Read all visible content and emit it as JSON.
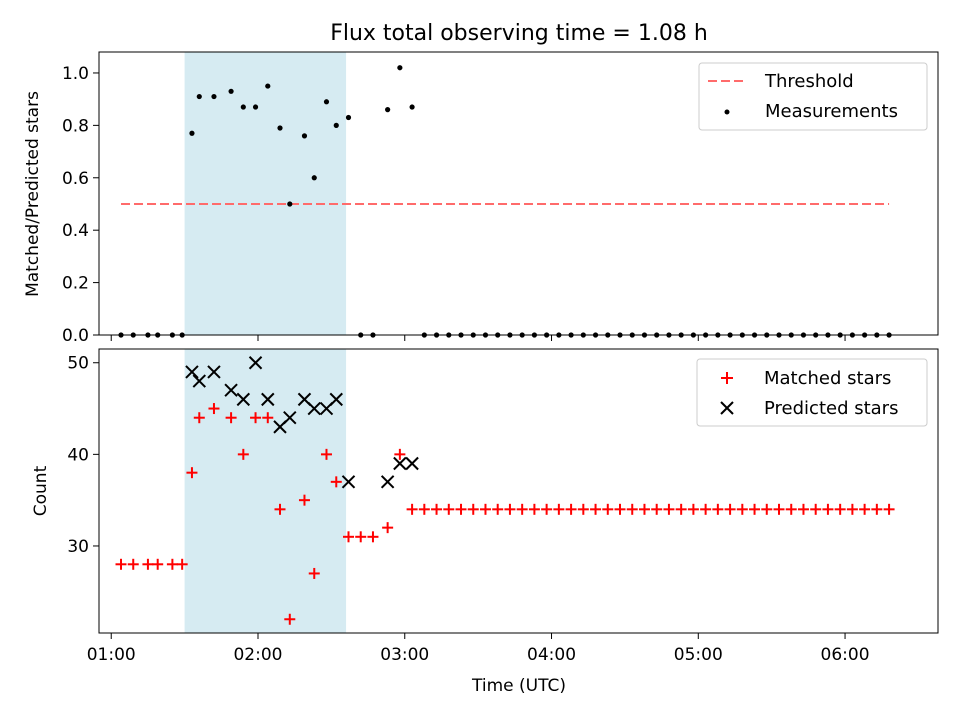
{
  "chart_data": [
    {
      "type": "scatter",
      "title": "Flux total observing time = 1.08 h",
      "ylabel": "Matched/Predicted stars",
      "xlabel": "",
      "xlim": [
        "00:55",
        "06:38"
      ],
      "ylim": [
        0,
        1.08
      ],
      "yticks": [
        "0.0",
        "0.2",
        "0.4",
        "0.6",
        "0.8",
        "1.0"
      ],
      "shaded_region": [
        "01:30",
        "02:36"
      ],
      "legend_position": "top-right",
      "threshold": {
        "name": "Threshold",
        "value": 0.5,
        "x_range": [
          "01:04",
          "06:18"
        ],
        "color": "#ff6b6b"
      },
      "measurements": {
        "name": "Measurements",
        "color": "#000000",
        "x": [
          "01:04",
          "01:09",
          "01:15",
          "01:19",
          "01:25",
          "01:29",
          "01:33",
          "01:36",
          "01:42",
          "01:49",
          "01:54",
          "01:59",
          "02:04",
          "02:09",
          "02:13",
          "02:19",
          "02:23",
          "02:28",
          "02:32",
          "02:37",
          "02:42",
          "02:47",
          "02:53",
          "02:58",
          "03:03",
          "03:08",
          "03:13",
          "03:18",
          "03:23",
          "03:28",
          "03:33",
          "03:38",
          "03:43",
          "03:48",
          "03:53",
          "03:58",
          "04:03",
          "04:08",
          "04:13",
          "04:18",
          "04:23",
          "04:28",
          "04:33",
          "04:38",
          "04:43",
          "04:48",
          "04:53",
          "04:58",
          "05:03",
          "05:08",
          "05:13",
          "05:18",
          "05:23",
          "05:28",
          "05:33",
          "05:38",
          "05:43",
          "05:48",
          "05:53",
          "05:58",
          "06:03",
          "06:08",
          "06:13",
          "06:18"
        ],
        "y": [
          0,
          0,
          0,
          0,
          0,
          0,
          0.77,
          0.91,
          0.91,
          0.93,
          0.87,
          0.87,
          0.95,
          0.79,
          0.5,
          0.76,
          0.6,
          0.89,
          0.8,
          0.83,
          0,
          0,
          0.86,
          1.02,
          0.87,
          0,
          0,
          0,
          0,
          0,
          0,
          0,
          0,
          0,
          0,
          0,
          0,
          0,
          0,
          0,
          0,
          0,
          0,
          0,
          0,
          0,
          0,
          0,
          0,
          0,
          0,
          0,
          0,
          0,
          0,
          0,
          0,
          0,
          0,
          0,
          0,
          0,
          0,
          0
        ]
      }
    },
    {
      "type": "scatter",
      "title": "",
      "ylabel": "Count",
      "xlabel": "Time (UTC)",
      "xlim": [
        "00:55",
        "06:38"
      ],
      "ylim": [
        20.5,
        51.5
      ],
      "yticks": [
        "30",
        "40",
        "50"
      ],
      "xticks": [
        "01:00",
        "02:00",
        "03:00",
        "04:00",
        "05:00",
        "06:00"
      ],
      "shaded_region": [
        "01:30",
        "02:36"
      ],
      "legend_position": "top-right",
      "series": [
        {
          "name": "Matched stars",
          "marker": "plus",
          "color": "#ff0000",
          "x": [
            "01:04",
            "01:09",
            "01:15",
            "01:19",
            "01:25",
            "01:29",
            "01:33",
            "01:36",
            "01:42",
            "01:49",
            "01:54",
            "01:59",
            "02:04",
            "02:09",
            "02:13",
            "02:19",
            "02:23",
            "02:28",
            "02:32",
            "02:37",
            "02:42",
            "02:47",
            "02:53",
            "02:58",
            "03:03",
            "03:08",
            "03:13",
            "03:18",
            "03:23",
            "03:28",
            "03:33",
            "03:38",
            "03:43",
            "03:48",
            "03:53",
            "03:58",
            "04:03",
            "04:08",
            "04:13",
            "04:18",
            "04:23",
            "04:28",
            "04:33",
            "04:38",
            "04:43",
            "04:48",
            "04:53",
            "04:58",
            "05:03",
            "05:08",
            "05:13",
            "05:18",
            "05:23",
            "05:28",
            "05:33",
            "05:38",
            "05:43",
            "05:48",
            "05:53",
            "05:58",
            "06:03",
            "06:08",
            "06:13",
            "06:18"
          ],
          "y": [
            28,
            28,
            28,
            28,
            28,
            28,
            38,
            44,
            45,
            44,
            40,
            44,
            44,
            34,
            22,
            35,
            27,
            40,
            37,
            31,
            31,
            31,
            32,
            40,
            34,
            34,
            34,
            34,
            34,
            34,
            34,
            34,
            34,
            34,
            34,
            34,
            34,
            34,
            34,
            34,
            34,
            34,
            34,
            34,
            34,
            34,
            34,
            34,
            34,
            34,
            34,
            34,
            34,
            34,
            34,
            34,
            34,
            34,
            34,
            34,
            34,
            34,
            34,
            34
          ]
        },
        {
          "name": "Predicted stars",
          "marker": "x",
          "color": "#000000",
          "x": [
            "01:33",
            "01:36",
            "01:42",
            "01:49",
            "01:54",
            "01:59",
            "02:04",
            "02:09",
            "02:13",
            "02:19",
            "02:23",
            "02:28",
            "02:32",
            "02:37",
            "02:53",
            "02:58",
            "03:03"
          ],
          "y": [
            49,
            48,
            49,
            47,
            46,
            50,
            46,
            43,
            44,
            46,
            45,
            45,
            46,
            37,
            37,
            39,
            39
          ]
        }
      ]
    }
  ]
}
